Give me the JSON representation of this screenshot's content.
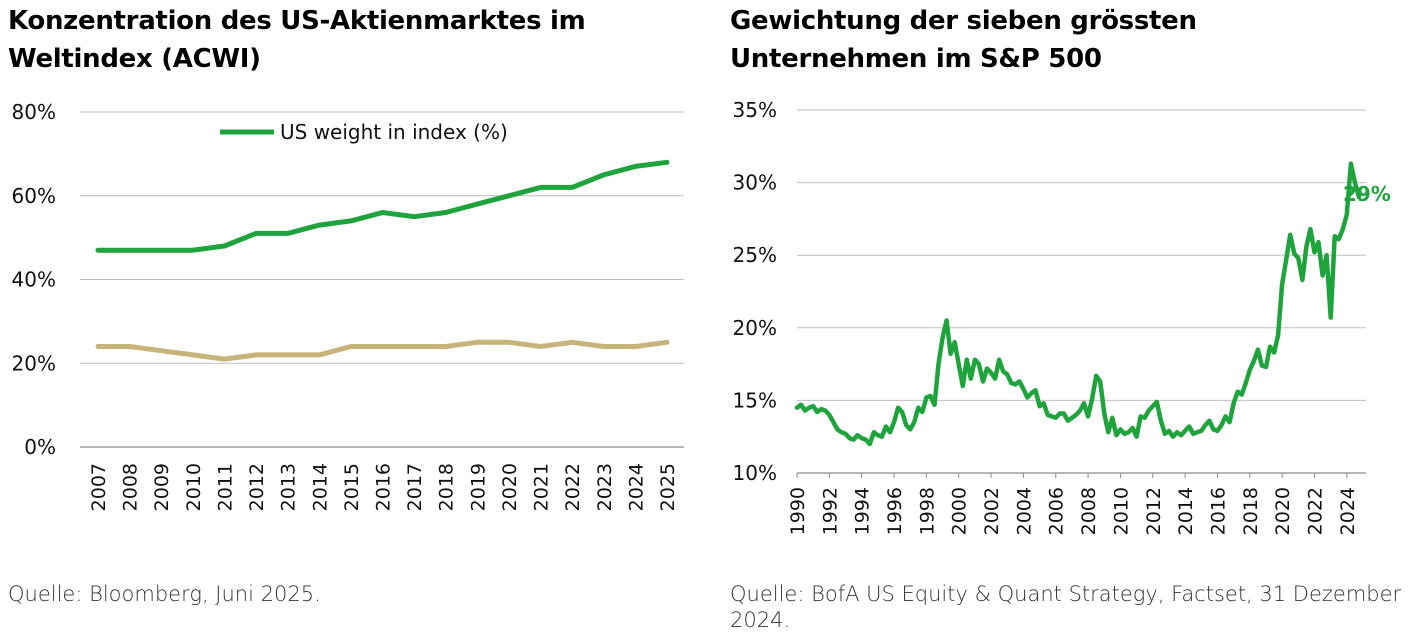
{
  "colors": {
    "green": "#1fa33c",
    "tan": "#c8b37a",
    "grid": "#bfbfbf"
  },
  "left": {
    "title": "Konzentration des US-Aktienmarktes im\nWeltindex (ACWI)",
    "source": "Quelle: Bloomberg, Juni 2025."
  },
  "right": {
    "title": "Gewichtung der sieben grössten\nUnternehmen im S&P 500",
    "source": "Quelle: BofA US Equity & Quant Strategy, Factset, 31 Dezember 2024."
  },
  "chart_data": [
    {
      "type": "line",
      "title": "Konzentration des US-Aktienmarktes im Weltindex (ACWI)",
      "categories": [
        "2007",
        "2008",
        "2009",
        "2010",
        "2011",
        "2012",
        "2013",
        "2014",
        "2015",
        "2016",
        "2017",
        "2018",
        "2019",
        "2020",
        "2021",
        "2022",
        "2023",
        "2024",
        "2025"
      ],
      "series": [
        {
          "name": "US weight in index (%)",
          "color": "#1fa33c",
          "values": [
            47,
            47,
            47,
            47,
            48,
            51,
            51,
            53,
            54,
            56,
            55,
            56,
            58,
            60,
            62,
            62,
            65,
            67,
            68
          ]
        },
        {
          "color": "#c8b37a",
          "values": [
            24,
            24,
            23,
            22,
            21,
            22,
            22,
            22,
            24,
            24,
            24,
            24,
            25,
            25,
            24,
            25,
            24,
            24,
            25
          ]
        }
      ],
      "ylim": [
        0,
        80
      ],
      "yticks": [
        0,
        20,
        40,
        60,
        80
      ],
      "ytick_labels": [
        "0%",
        "20%",
        "40%",
        "60%",
        "80%"
      ],
      "grid": true,
      "legend": "top"
    },
    {
      "type": "line",
      "title": "Gewichtung der sieben grössten Unternehmen im S&P 500",
      "x_start": 1990,
      "x_step": 0.25,
      "xlim": [
        1990,
        2025
      ],
      "xticks": [
        1990,
        1992,
        1994,
        1996,
        1998,
        2000,
        2002,
        2004,
        2006,
        2008,
        2010,
        2012,
        2014,
        2016,
        2018,
        2020,
        2022,
        2024
      ],
      "ylim": [
        10,
        35
      ],
      "yticks": [
        10,
        15,
        20,
        25,
        30,
        35
      ],
      "ytick_labels": [
        "10%",
        "15%",
        "20%",
        "25%",
        "30%",
        "35%"
      ],
      "grid": true,
      "series": [
        {
          "color": "#1fa33c",
          "values": [
            14.5,
            14.7,
            14.3,
            14.5,
            14.6,
            14.2,
            14.4,
            14.3,
            14.0,
            13.5,
            13.0,
            12.8,
            12.7,
            12.4,
            12.3,
            12.6,
            12.4,
            12.3,
            12.0,
            12.8,
            12.6,
            12.5,
            13.2,
            12.8,
            13.5,
            14.5,
            14.2,
            13.3,
            13.0,
            13.5,
            14.5,
            14.2,
            15.2,
            15.3,
            14.7,
            17.5,
            19.3,
            20.5,
            18.2,
            19.0,
            17.5,
            16.0,
            17.8,
            16.5,
            17.8,
            17.5,
            16.3,
            17.2,
            16.9,
            16.5,
            17.8,
            17.0,
            16.8,
            16.2,
            16.1,
            16.3,
            15.8,
            15.2,
            15.5,
            15.7,
            14.6,
            14.8,
            14.0,
            13.9,
            13.8,
            14.1,
            14.1,
            13.6,
            13.8,
            14.0,
            14.3,
            14.8,
            13.9,
            15.1,
            16.7,
            16.3,
            14.1,
            12.8,
            13.8,
            12.6,
            13.0,
            12.7,
            12.8,
            13.1,
            12.5,
            13.9,
            13.8,
            14.3,
            14.6,
            14.9,
            13.6,
            12.7,
            12.9,
            12.5,
            12.8,
            12.6,
            12.9,
            13.2,
            12.7,
            12.8,
            12.9,
            13.3,
            13.6,
            13.0,
            12.9,
            13.3,
            13.9,
            13.5,
            14.8,
            15.6,
            15.4,
            16.2,
            17.1,
            17.7,
            18.5,
            17.4,
            17.3,
            18.7,
            18.3,
            19.5,
            23.0,
            24.7,
            26.4,
            25.1,
            24.8,
            23.3,
            25.6,
            26.8,
            25.2,
            25.9,
            23.6,
            25.0,
            20.7,
            26.3,
            26.1,
            26.8,
            27.8,
            31.3,
            30.0,
            29.0
          ]
        }
      ],
      "annotations": [
        {
          "text": "29%",
          "x": 2024.75,
          "y": 29
        }
      ]
    }
  ]
}
